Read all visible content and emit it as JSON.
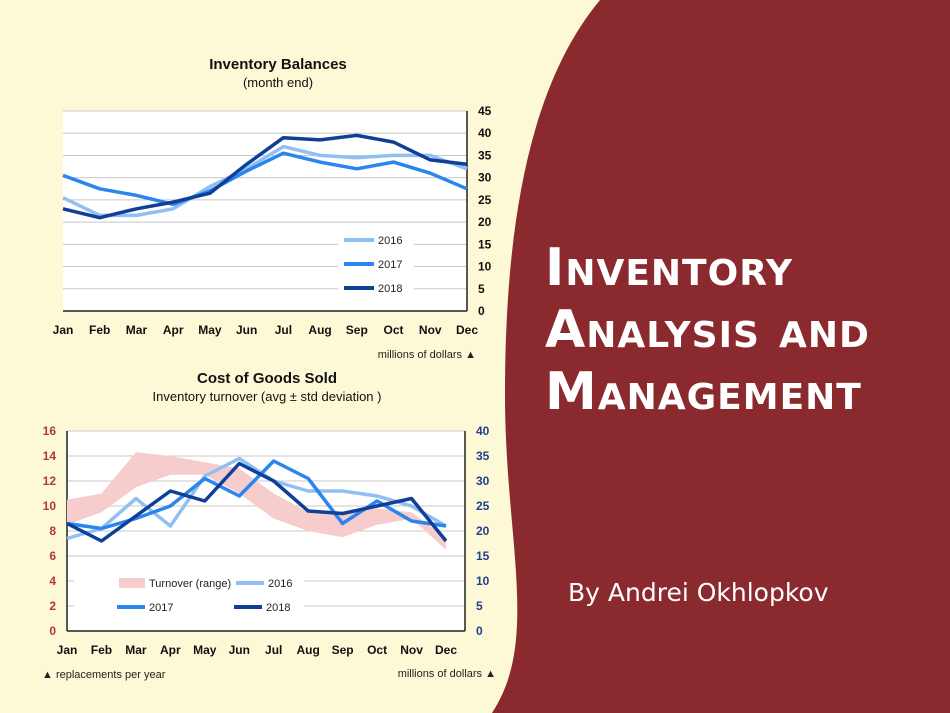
{
  "slide": {
    "title_lines": [
      "Inventory",
      "Analysis and",
      "Management"
    ],
    "author": "By Andrei Okhlopkov",
    "colors": {
      "background": "#fdf8d6",
      "panel": "#8b2a2e"
    }
  },
  "chart_data": [
    {
      "type": "line",
      "title": "Inventory Balances",
      "subtitle": "(month end)",
      "categories": [
        "Jan",
        "Feb",
        "Mar",
        "Apr",
        "May",
        "Jun",
        "Jul",
        "Aug",
        "Sep",
        "Oct",
        "Nov",
        "Dec"
      ],
      "series": [
        {
          "name": "2016",
          "color": "#92bff3",
          "values": [
            25.5,
            21.5,
            21.5,
            23,
            28,
            32,
            37,
            35,
            34.5,
            35,
            35,
            32
          ]
        },
        {
          "name": "2017",
          "color": "#2a86ee",
          "values": [
            30.5,
            27.5,
            26,
            24,
            27,
            31.5,
            35.5,
            33.5,
            32,
            33.5,
            31,
            27.5
          ]
        },
        {
          "name": "2018",
          "color": "#0f3f97",
          "values": [
            23,
            21,
            23,
            24.5,
            26.5,
            33,
            39,
            38.5,
            39.5,
            38,
            34,
            33
          ]
        }
      ],
      "y_axis": {
        "side": "right",
        "ylim": [
          0,
          45
        ],
        "ticks": [
          0,
          5,
          10,
          15,
          20,
          25,
          30,
          35,
          40,
          45
        ]
      },
      "units_note": "millions of dollars ▲",
      "grid": true,
      "legend": "bottom-right"
    },
    {
      "type": "line",
      "title": "Cost of Goods Sold",
      "subtitle": "Inventory turnover (avg ± std deviation )",
      "categories": [
        "Jan",
        "Feb",
        "Mar",
        "Apr",
        "May",
        "Jun",
        "Jul",
        "Aug",
        "Sep",
        "Oct",
        "Nov",
        "Dec"
      ],
      "turnover_range": {
        "name": "Turnover (range)",
        "color": "#f6cccc",
        "low": [
          8.5,
          9.5,
          11.5,
          12.5,
          12.5,
          11,
          9,
          8,
          7.5,
          8.5,
          9,
          6.5
        ],
        "high": [
          10.5,
          11,
          14.3,
          14,
          13.5,
          13,
          11,
          9.5,
          9.5,
          9.8,
          9.5,
          7.5
        ]
      },
      "series": [
        {
          "name": "2016",
          "color": "#92bff3",
          "values": [
            18.5,
            20.5,
            26.5,
            21,
            31,
            34.5,
            30,
            28,
            28,
            27,
            25,
            21
          ]
        },
        {
          "name": "2017",
          "color": "#2a86ee",
          "values": [
            21.5,
            20.5,
            22.5,
            25,
            30.5,
            27,
            34,
            30.5,
            21.5,
            26,
            22,
            21
          ]
        },
        {
          "name": "2018",
          "color": "#0f3f97",
          "values": [
            21.5,
            18,
            23,
            28,
            26,
            33.5,
            30,
            24,
            23.5,
            25,
            26.5,
            18
          ]
        }
      ],
      "y_axis_left": {
        "ylim": [
          0,
          16
        ],
        "ticks": [
          0,
          2,
          4,
          6,
          8,
          10,
          12,
          14,
          16
        ],
        "color": "#b03a30",
        "note": "▲ replacements per year"
      },
      "y_axis_right": {
        "ylim": [
          0,
          40
        ],
        "ticks": [
          0,
          5,
          10,
          15,
          20,
          25,
          30,
          35,
          40
        ],
        "color": "#1f3f8f",
        "note": "millions of dollars ▲"
      },
      "grid": true,
      "legend": "bottom-left"
    }
  ]
}
